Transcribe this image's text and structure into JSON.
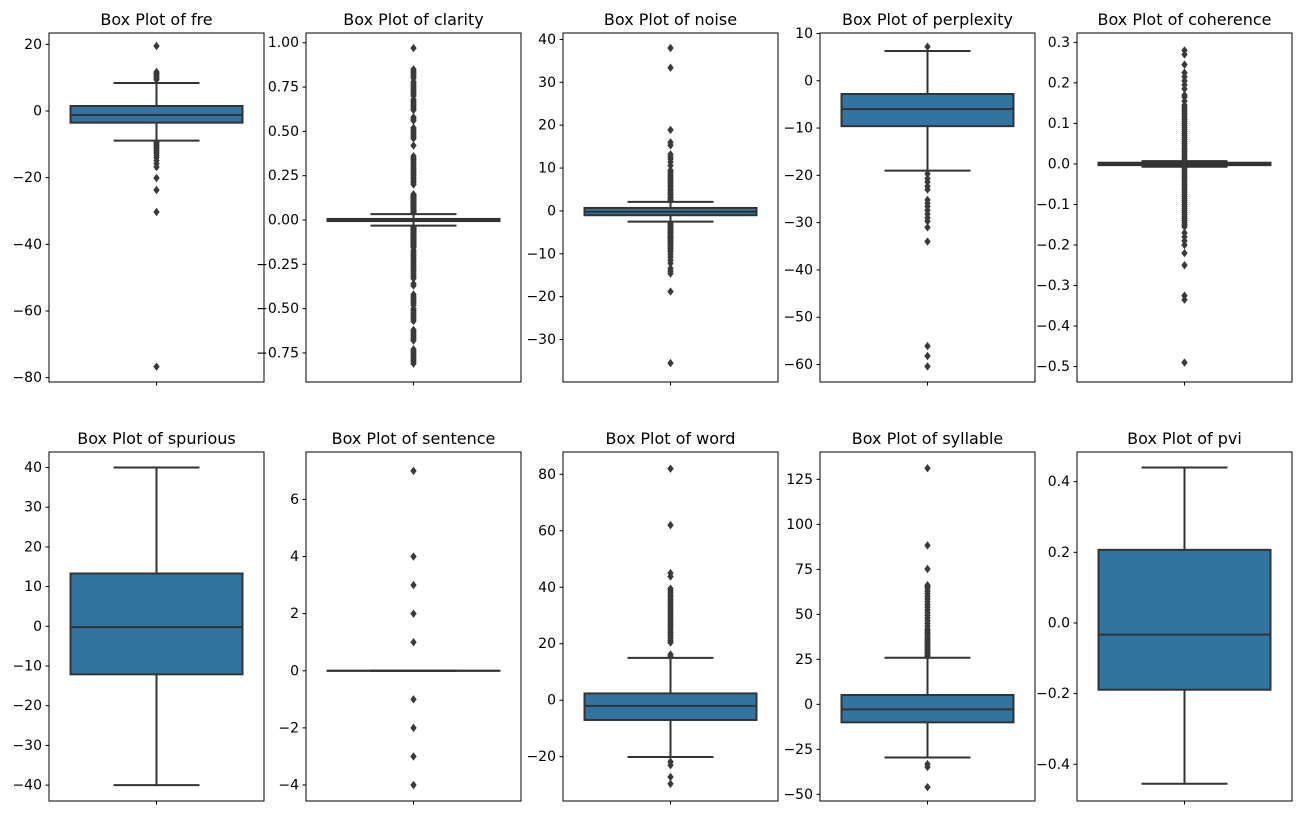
{
  "figure": {
    "background": "#ffffff",
    "box_fill": "#3274a1",
    "line_color": "#333333",
    "outlier_color": "#3a3a3a"
  },
  "chart_data": {
    "type": "box",
    "layout": {
      "rows": 2,
      "cols": 5,
      "grid": false,
      "legend": "none",
      "xticklabels": false
    },
    "plots": [
      {
        "id": "fre",
        "title": "Box Plot of fre",
        "ylim": [
          -81.3,
          23.4
        ],
        "yticks": [
          {
            "v": 20,
            "label": "20"
          },
          {
            "v": 0,
            "label": "0"
          },
          {
            "v": -20,
            "label": "−20"
          },
          {
            "v": -40,
            "label": "−40"
          },
          {
            "v": -60,
            "label": "−60"
          },
          {
            "v": -80,
            "label": "−80"
          }
        ],
        "stats": {
          "q1": -3.5,
          "median": -1.2,
          "q3": 1.5,
          "whislo": -8.9,
          "whishi": 8.4
        },
        "outliers": [
          19.5,
          11.7,
          11.3,
          10.9,
          10.4,
          9.9,
          9.4,
          -9.4,
          -9.9,
          -10.4,
          -10.9,
          -11.4,
          -12.0,
          -12.6,
          -13.3,
          -14.0,
          -14.9,
          -15.8,
          -16.8,
          -20.1,
          -23.7,
          -30.3,
          -76.7
        ]
      },
      {
        "id": "clarity",
        "title": "Box Plot of clarity",
        "ylim": [
          -0.914,
          1.055
        ],
        "yticks": [
          {
            "v": 1.0,
            "label": "1.00"
          },
          {
            "v": 0.75,
            "label": "0.75"
          },
          {
            "v": 0.5,
            "label": "0.50"
          },
          {
            "v": 0.25,
            "label": "0.25"
          },
          {
            "v": 0.0,
            "label": "0.00"
          },
          {
            "v": -0.25,
            "label": "−0.25"
          },
          {
            "v": -0.5,
            "label": "−0.50"
          },
          {
            "v": -0.75,
            "label": "−0.75"
          }
        ],
        "stats": {
          "q1": -0.006,
          "median": 0.0,
          "q3": 0.006,
          "whislo": -0.032,
          "whishi": 0.033
        },
        "outliers": [
          0.97,
          0.85,
          0.84,
          0.83,
          0.82,
          0.81,
          0.8,
          0.78,
          0.77,
          0.76,
          0.75,
          0.74,
          0.73,
          0.72,
          0.71,
          0.7,
          0.68,
          0.67,
          0.66,
          0.65,
          0.64,
          0.63,
          0.62,
          0.58,
          0.57,
          0.56,
          0.52,
          0.51,
          0.5,
          0.49,
          0.48,
          0.47,
          0.46,
          0.42,
          0.36,
          0.35,
          0.34,
          0.33,
          0.32,
          0.31,
          0.3,
          0.29,
          0.28,
          0.27,
          0.26,
          0.25,
          0.24,
          0.23,
          0.22,
          0.21,
          0.2,
          0.145,
          0.14,
          0.135,
          0.13,
          0.125,
          0.12,
          0.115,
          0.11,
          0.105,
          0.1,
          0.095,
          0.09,
          0.085,
          0.08,
          0.075,
          0.07,
          0.065,
          0.06,
          0.055,
          0.05,
          0.045,
          0.04,
          -0.04,
          -0.045,
          -0.05,
          -0.055,
          -0.06,
          -0.065,
          -0.07,
          -0.075,
          -0.08,
          -0.085,
          -0.09,
          -0.095,
          -0.1,
          -0.105,
          -0.11,
          -0.115,
          -0.12,
          -0.125,
          -0.13,
          -0.135,
          -0.14,
          -0.145,
          -0.15,
          -0.155,
          -0.17,
          -0.18,
          -0.19,
          -0.2,
          -0.21,
          -0.22,
          -0.23,
          -0.24,
          -0.25,
          -0.26,
          -0.27,
          -0.28,
          -0.29,
          -0.3,
          -0.31,
          -0.32,
          -0.33,
          -0.36,
          -0.37,
          -0.42,
          -0.43,
          -0.44,
          -0.45,
          -0.46,
          -0.47,
          -0.48,
          -0.5,
          -0.51,
          -0.52,
          -0.53,
          -0.54,
          -0.55,
          -0.56,
          -0.57,
          -0.62,
          -0.63,
          -0.64,
          -0.65,
          -0.66,
          -0.67,
          -0.68,
          -0.73,
          -0.74,
          -0.75,
          -0.76,
          -0.77,
          -0.78,
          -0.79,
          -0.8,
          -0.81
        ]
      },
      {
        "id": "noise",
        "title": "Box Plot of noise",
        "ylim": [
          -39.9,
          41.5
        ],
        "yticks": [
          {
            "v": 40,
            "label": "40"
          },
          {
            "v": 30,
            "label": "30"
          },
          {
            "v": 20,
            "label": "20"
          },
          {
            "v": 10,
            "label": "10"
          },
          {
            "v": 0,
            "label": "0"
          },
          {
            "v": -10,
            "label": "−10"
          },
          {
            "v": -20,
            "label": "−20"
          },
          {
            "v": -30,
            "label": "−30"
          }
        ],
        "stats": {
          "q1": -1.0,
          "median": -0.2,
          "q3": 0.7,
          "whislo": -2.5,
          "whishi": 2.1
        },
        "outliers": [
          38.0,
          33.4,
          18.9,
          16.0,
          15.3,
          13.2,
          12.6,
          12.1,
          11.4,
          10.6,
          9.5,
          9.1,
          8.7,
          8.3,
          7.9,
          7.5,
          7.1,
          6.7,
          6.3,
          5.9,
          5.5,
          5.1,
          4.7,
          4.3,
          3.9,
          3.5,
          3.1,
          2.7,
          2.4,
          -2.9,
          -3.2,
          -3.5,
          -3.8,
          -4.1,
          -4.4,
          -4.7,
          -5.0,
          -5.3,
          -5.6,
          -5.9,
          -6.2,
          -6.5,
          -6.8,
          -7.1,
          -7.4,
          -7.7,
          -8.0,
          -8.4,
          -8.8,
          -9.2,
          -9.6,
          -10.2,
          -10.8,
          -11.5,
          -12.2,
          -13.4,
          -14.0,
          -14.6,
          -18.8,
          -35.5
        ]
      },
      {
        "id": "perplexity",
        "title": "Box Plot of perplexity",
        "ylim": [
          -63.7,
          10.1
        ],
        "yticks": [
          {
            "v": 10,
            "label": "10"
          },
          {
            "v": 0,
            "label": "0"
          },
          {
            "v": -10,
            "label": "−10"
          },
          {
            "v": -20,
            "label": "−20"
          },
          {
            "v": -30,
            "label": "−30"
          },
          {
            "v": -40,
            "label": "−40"
          },
          {
            "v": -50,
            "label": "−50"
          },
          {
            "v": -60,
            "label": "−60"
          }
        ],
        "stats": {
          "q1": -9.6,
          "median": -6.0,
          "q3": -2.8,
          "whislo": -19.0,
          "whishi": 6.3
        },
        "outliers": [
          7.2,
          -19.7,
          -20.7,
          -21.4,
          -22.3,
          -23.0,
          -25.2,
          -25.9,
          -26.6,
          -27.4,
          -28.2,
          -29.0,
          -29.7,
          -31.0,
          -34.0,
          -56.1,
          -58.2,
          -60.4
        ]
      },
      {
        "id": "coherence",
        "title": "Box Plot of coherence",
        "ylim": [
          -0.538,
          0.323
        ],
        "yticks": [
          {
            "v": 0.3,
            "label": "0.3"
          },
          {
            "v": 0.2,
            "label": "0.2"
          },
          {
            "v": 0.1,
            "label": "0.1"
          },
          {
            "v": 0.0,
            "label": "0.0"
          },
          {
            "v": -0.1,
            "label": "−0.1"
          },
          {
            "v": -0.2,
            "label": "−0.2"
          },
          {
            "v": -0.3,
            "label": "−0.3"
          },
          {
            "v": -0.4,
            "label": "−0.4"
          },
          {
            "v": -0.5,
            "label": "−0.5"
          }
        ],
        "stats": {
          "q1": -0.003,
          "median": 0.0,
          "q3": 0.003,
          "whislo": -0.007,
          "whishi": 0.007
        },
        "outliers": [
          0.28,
          0.27,
          0.245,
          0.225,
          0.215,
          0.205,
          0.195,
          0.185,
          0.17,
          0.165,
          0.155,
          0.145,
          0.14,
          0.135,
          0.13,
          0.125,
          0.12,
          0.115,
          0.11,
          0.105,
          0.1,
          0.095,
          0.09,
          0.085,
          0.08,
          0.075,
          0.07,
          0.065,
          0.06,
          0.055,
          0.05,
          0.045,
          0.04,
          0.035,
          0.03,
          0.025,
          0.02,
          0.015,
          0.01,
          -0.01,
          -0.015,
          -0.02,
          -0.025,
          -0.03,
          -0.035,
          -0.04,
          -0.045,
          -0.05,
          -0.055,
          -0.06,
          -0.065,
          -0.07,
          -0.075,
          -0.08,
          -0.085,
          -0.09,
          -0.095,
          -0.1,
          -0.105,
          -0.11,
          -0.115,
          -0.12,
          -0.125,
          -0.13,
          -0.135,
          -0.14,
          -0.145,
          -0.15,
          -0.155,
          -0.17,
          -0.18,
          -0.19,
          -0.2,
          -0.22,
          -0.25,
          -0.325,
          -0.335,
          -0.49
        ]
      },
      {
        "id": "spurious",
        "title": "Box Plot of spurious",
        "ylim": [
          -44.0,
          43.9
        ],
        "yticks": [
          {
            "v": 40,
            "label": "40"
          },
          {
            "v": 30,
            "label": "30"
          },
          {
            "v": 20,
            "label": "20"
          },
          {
            "v": 10,
            "label": "10"
          },
          {
            "v": 0,
            "label": "0"
          },
          {
            "v": -10,
            "label": "−10"
          },
          {
            "v": -20,
            "label": "−20"
          },
          {
            "v": -30,
            "label": "−30"
          },
          {
            "v": -40,
            "label": "−40"
          }
        ],
        "stats": {
          "q1": -12.1,
          "median": -0.2,
          "q3": 13.3,
          "whislo": -40.0,
          "whishi": 40.0
        },
        "outliers": []
      },
      {
        "id": "sentence",
        "title": "Box Plot of sentence",
        "ylim": [
          -4.56,
          7.66
        ],
        "yticks": [
          {
            "v": 6,
            "label": "6"
          },
          {
            "v": 4,
            "label": "4"
          },
          {
            "v": 2,
            "label": "2"
          },
          {
            "v": 0,
            "label": "0"
          },
          {
            "v": -2,
            "label": "−2"
          },
          {
            "v": -4,
            "label": "−4"
          }
        ],
        "stats": {
          "q1": 0.0,
          "median": 0.0,
          "q3": 0.0,
          "whislo": 0.0,
          "whishi": 0.0
        },
        "outliers": [
          7,
          4,
          3,
          2,
          1,
          -1,
          -2,
          -3,
          -4
        ]
      },
      {
        "id": "word",
        "title": "Box Plot of word",
        "ylim": [
          -35.7,
          87.9
        ],
        "yticks": [
          {
            "v": 80,
            "label": "80"
          },
          {
            "v": 60,
            "label": "60"
          },
          {
            "v": 40,
            "label": "40"
          },
          {
            "v": 20,
            "label": "20"
          },
          {
            "v": 0,
            "label": "0"
          },
          {
            "v": -20,
            "label": "−20"
          }
        ],
        "stats": {
          "q1": -7.0,
          "median": -2.0,
          "q3": 2.4,
          "whislo": -20.1,
          "whishi": 15.0
        },
        "outliers": [
          82.0,
          62.0,
          45.0,
          43.8,
          39.5,
          38.8,
          38.0,
          37.2,
          36.5,
          35.8,
          35.1,
          34.4,
          33.7,
          33.0,
          32.3,
          31.6,
          30.9,
          30.2,
          29.5,
          28.8,
          28.1,
          27.4,
          26.7,
          26.0,
          25.3,
          24.6,
          23.9,
          23.2,
          22.5,
          21.8,
          21.1,
          20.4,
          16.2,
          15.6,
          -21.8,
          -23.0,
          -27.2,
          -29.6
        ]
      },
      {
        "id": "syllable",
        "title": "Box Plot of syllable",
        "ylim": [
          -53.7,
          140.2
        ],
        "yticks": [
          {
            "v": 125,
            "label": "125"
          },
          {
            "v": 100,
            "label": "100"
          },
          {
            "v": 75,
            "label": "75"
          },
          {
            "v": 50,
            "label": "50"
          },
          {
            "v": 25,
            "label": "25"
          },
          {
            "v": 0,
            "label": "0"
          },
          {
            "v": -25,
            "label": "−25"
          },
          {
            "v": -50,
            "label": "−50"
          }
        ],
        "stats": {
          "q1": -10.0,
          "median": -2.8,
          "q3": 5.2,
          "whislo": -29.5,
          "whishi": 25.9
        },
        "outliers": [
          131.2,
          88.3,
          75.2,
          66.2,
          65.5,
          64.5,
          63.0,
          61.5,
          60.0,
          58.5,
          57.0,
          55.5,
          54.0,
          52.5,
          51.0,
          49.5,
          48.0,
          46.5,
          45.0,
          43.5,
          42.0,
          41.0,
          40.0,
          39.0,
          38.0,
          37.0,
          36.1,
          35.3,
          34.5,
          33.7,
          32.9,
          32.1,
          31.3,
          30.5,
          29.7,
          28.9,
          28.1,
          27.3,
          26.5,
          -33.2,
          -34.8,
          -46.0
        ]
      },
      {
        "id": "pvi",
        "title": "Box Plot of pvi",
        "ylim": [
          -0.504,
          0.484
        ],
        "yticks": [
          {
            "v": 0.4,
            "label": "0.4"
          },
          {
            "v": 0.2,
            "label": "0.2"
          },
          {
            "v": 0.0,
            "label": "0.0"
          },
          {
            "v": -0.2,
            "label": "−0.2"
          },
          {
            "v": -0.4,
            "label": "−0.4"
          }
        ],
        "stats": {
          "q1": -0.189,
          "median": -0.033,
          "q3": 0.207,
          "whislo": -0.455,
          "whishi": 0.44
        },
        "outliers": []
      }
    ]
  }
}
